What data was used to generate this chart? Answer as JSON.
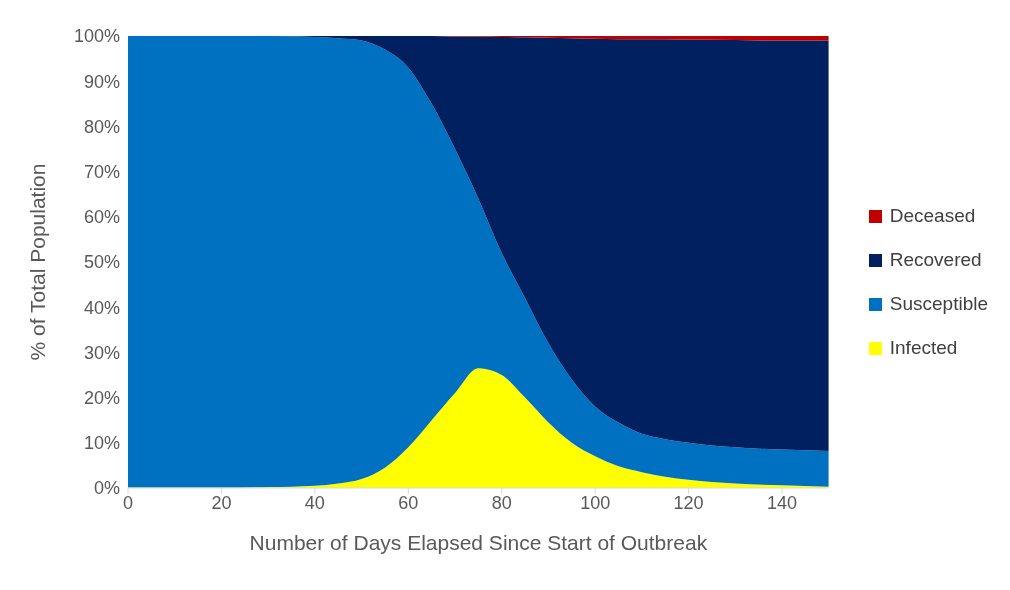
{
  "chart_data": {
    "type": "area",
    "stacked": true,
    "xlabel": "Number of Days Elapsed Since Start of Outbreak",
    "ylabel": "% of Total Population",
    "x": [
      0,
      10,
      20,
      30,
      40,
      45,
      50,
      55,
      60,
      65,
      70,
      75,
      80,
      85,
      90,
      95,
      100,
      105,
      110,
      115,
      120,
      130,
      140,
      150
    ],
    "series": [
      {
        "name": "Infected",
        "color": "#ffff00",
        "values": [
          0.1,
          0.1,
          0.1,
          0.2,
          0.5,
          1,
          2,
          4.5,
          9,
          15,
          21,
          26.5,
          25,
          20,
          14.5,
          10,
          7,
          4.8,
          3.5,
          2.5,
          1.8,
          1,
          0.6,
          0.3
        ]
      },
      {
        "name": "Susceptible",
        "color": "#0070c0",
        "values": [
          99.9,
          99.9,
          99.9,
          99.8,
          99.3,
          98.5,
          97,
          92.5,
          84,
          70,
          54,
          37.5,
          27,
          22,
          17.5,
          14,
          11,
          9.7,
          8.5,
          8.3,
          8.2,
          8,
          7.9,
          7.9
        ]
      },
      {
        "name": "Recovered",
        "color": "#002060",
        "values": [
          0,
          0,
          0,
          0,
          0.2,
          0.5,
          1,
          3,
          7,
          15,
          24.9,
          35.9,
          47.8,
          57.7,
          67.6,
          75.5,
          81.4,
          84.8,
          87.3,
          88.5,
          89.2,
          90.1,
          90.5,
          90.8
        ]
      },
      {
        "name": "Deceased",
        "color": "#c00000",
        "values": [
          0,
          0,
          0,
          0,
          0,
          0,
          0,
          0,
          0,
          0,
          0.1,
          0.1,
          0.2,
          0.3,
          0.4,
          0.5,
          0.6,
          0.7,
          0.7,
          0.7,
          0.8,
          0.9,
          1,
          1
        ]
      }
    ],
    "xlim": [
      0,
      150
    ],
    "xticks": [
      0,
      20,
      40,
      60,
      80,
      100,
      120,
      140
    ],
    "ylim": [
      0,
      100
    ],
    "yticks": [
      {
        "value": 0,
        "label": "0%"
      },
      {
        "value": 10,
        "label": "10%"
      },
      {
        "value": 20,
        "label": "20%"
      },
      {
        "value": 30,
        "label": "30%"
      },
      {
        "value": 40,
        "label": "40%"
      },
      {
        "value": 50,
        "label": "50%"
      },
      {
        "value": 60,
        "label": "60%"
      },
      {
        "value": 70,
        "label": "70%"
      },
      {
        "value": 80,
        "label": "80%"
      },
      {
        "value": 90,
        "label": "90%"
      },
      {
        "value": 100,
        "label": "100%"
      }
    ],
    "grid": false,
    "legend": "right"
  }
}
